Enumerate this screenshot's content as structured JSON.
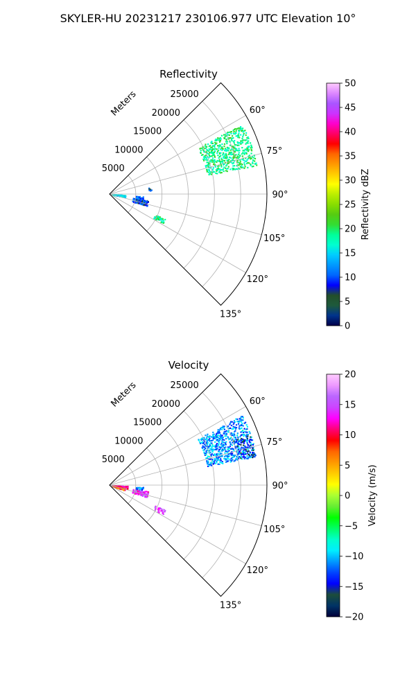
{
  "figure": {
    "suptitle": "SKYLER-HU  20231217  230106.977 UTC Elevation 10°"
  },
  "chart_data": [
    {
      "type": "polar-sector",
      "title": "Reflectivity",
      "range_label": "Meters",
      "theta_range_deg": [
        45,
        135
      ],
      "range_max_m": 30000,
      "range_ticks": [
        5000,
        10000,
        15000,
        20000,
        25000
      ],
      "range_tick_labels": [
        "5000",
        "10000",
        "15000",
        "20000",
        "25000"
      ],
      "theta_ticks": [
        60,
        75,
        90,
        105,
        120,
        135
      ],
      "theta_tick_labels": [
        "60°",
        "75°",
        "90°",
        "105°",
        "120°",
        "135°"
      ],
      "grid": true,
      "colorbar": {
        "label": "Reflectivity dBZ",
        "min": 0,
        "max": 50,
        "ticks": [
          0,
          5,
          10,
          15,
          20,
          25,
          30,
          35,
          40,
          45,
          50
        ],
        "tick_labels": [
          "0",
          "5",
          "10",
          "15",
          "20",
          "25",
          "30",
          "35",
          "40",
          "45",
          "50"
        ]
      },
      "echo_regions": [
        {
          "az_deg": [
            62,
            78
          ],
          "range_m": [
            19000,
            28500
          ],
          "value": 19,
          "density": 0.55
        },
        {
          "az_deg": [
            99,
            107
          ],
          "range_m": [
            4500,
            7500
          ],
          "value": 9,
          "density": 0.6
        },
        {
          "az_deg": [
            93,
            97
          ],
          "range_m": [
            5000,
            6500
          ],
          "value": 10,
          "density": 0.4
        },
        {
          "az_deg": [
            92,
            100
          ],
          "range_m": [
            500,
            3000
          ],
          "value": 15,
          "density": 0.5
        },
        {
          "az_deg": [
            114,
            118
          ],
          "range_m": [
            9500,
            11500
          ],
          "value": 18,
          "density": 0.6
        },
        {
          "az_deg": [
            80,
            84
          ],
          "range_m": [
            7500,
            8000
          ],
          "value": 8,
          "density": 0.5
        }
      ]
    },
    {
      "type": "polar-sector",
      "title": "Velocity",
      "range_label": "Meters",
      "theta_range_deg": [
        45,
        135
      ],
      "range_max_m": 30000,
      "range_ticks": [
        5000,
        10000,
        15000,
        20000,
        25000
      ],
      "range_tick_labels": [
        "5000",
        "10000",
        "15000",
        "20000",
        "25000"
      ],
      "theta_ticks": [
        60,
        75,
        90,
        105,
        120,
        135
      ],
      "theta_tick_labels": [
        "60°",
        "75°",
        "90°",
        "105°",
        "120°",
        "135°"
      ],
      "grid": true,
      "colorbar": {
        "label": "Velocity (m/s)",
        "min": -20,
        "max": 20,
        "ticks": [
          -20,
          -15,
          -10,
          -5,
          0,
          5,
          10,
          15,
          20
        ],
        "tick_labels": [
          "−20",
          "−15",
          "−10",
          "−5",
          "0",
          "5",
          "10",
          "15",
          "20"
        ]
      },
      "echo_regions": [
        {
          "az_deg": [
            62,
            78
          ],
          "range_m": [
            19000,
            28500
          ],
          "value": -11,
          "density": 0.55
        },
        {
          "az_deg": [
            70,
            78
          ],
          "range_m": [
            25000,
            28500
          ],
          "value": -15,
          "density": 0.4
        },
        {
          "az_deg": [
            99,
            107
          ],
          "range_m": [
            4500,
            7500
          ],
          "value": 14,
          "density": 0.6
        },
        {
          "az_deg": [
            93,
            97
          ],
          "range_m": [
            5000,
            6500
          ],
          "value": -11,
          "density": 0.4
        },
        {
          "az_deg": [
            92,
            100
          ],
          "range_m": [
            500,
            3500
          ],
          "value": 12,
          "density": 0.55
        },
        {
          "az_deg": [
            100,
            108
          ],
          "range_m": [
            500,
            3000
          ],
          "value": 8,
          "density": 0.5
        },
        {
          "az_deg": [
            114,
            118
          ],
          "range_m": [
            9500,
            11500
          ],
          "value": 15,
          "density": 0.6
        }
      ]
    }
  ],
  "colors": {
    "reflectivity_scale": [
      "#00004a",
      "#00338c",
      "#1e5a3c",
      "#234f2a",
      "#0000ff",
      "#0066ff",
      "#0099ff",
      "#00ccff",
      "#00ffd0",
      "#00ff99",
      "#33dd33",
      "#55cc11",
      "#88dd00",
      "#bbee00",
      "#ffff00",
      "#ffcc00",
      "#ff9900",
      "#ff6600",
      "#ff0000",
      "#ff0066",
      "#ff00cc",
      "#cc33ff",
      "#aa55ff",
      "#dd88ff",
      "#ffccff"
    ],
    "velocity_scale": [
      "#00003a",
      "#003366",
      "#1c4d3a",
      "#0000ff",
      "#0044ff",
      "#0099ff",
      "#00eeff",
      "#00ffcc",
      "#00ff66",
      "#00ff00",
      "#66ee33",
      "#aaff33",
      "#ffff00",
      "#ffcc00",
      "#ff9900",
      "#ff6600",
      "#ff0000",
      "#ff0077",
      "#ff00ff",
      "#cc44ff",
      "#bb66ff",
      "#ee99ff",
      "#ffccff"
    ]
  }
}
